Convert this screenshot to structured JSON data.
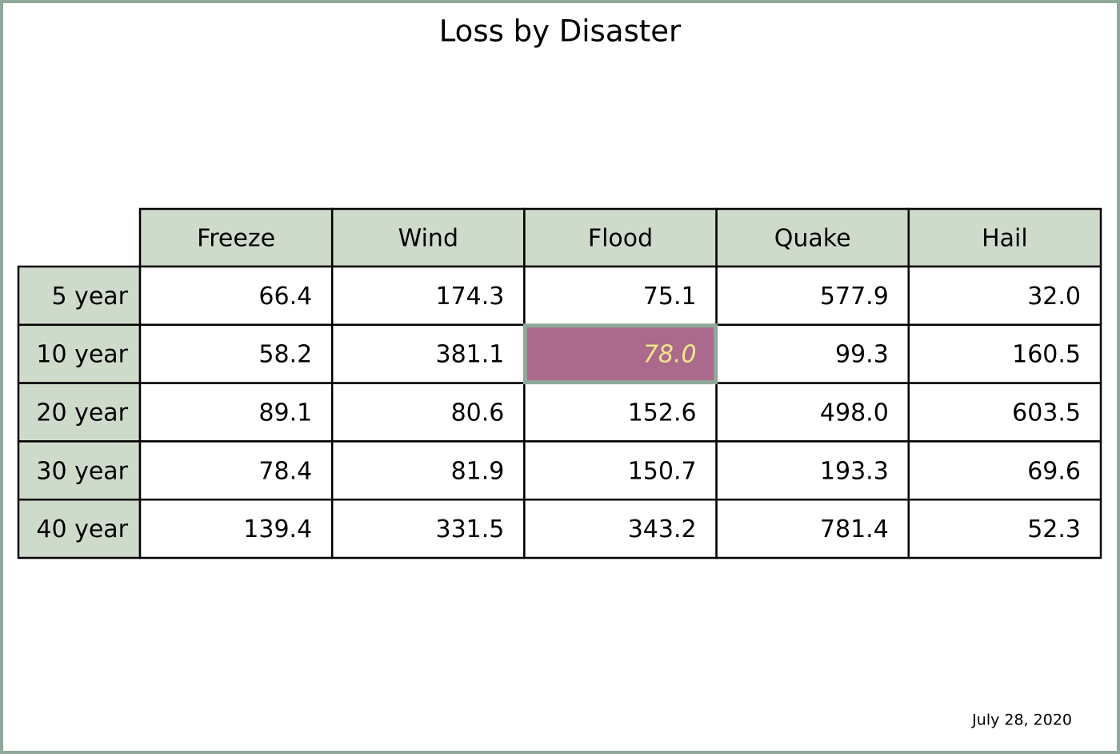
{
  "title": "Loss by Disaster",
  "table": {
    "columns": [
      "Freeze",
      "Wind",
      "Flood",
      "Quake",
      "Hail"
    ],
    "row_labels": [
      "5 year",
      "10 year",
      "20 year",
      "30 year",
      "40 year"
    ],
    "rows": [
      [
        "66.4",
        "174.3",
        "75.1",
        "577.9",
        "32.0"
      ],
      [
        "58.2",
        "381.1",
        "78.0",
        "99.3",
        "160.5"
      ],
      [
        "89.1",
        "80.6",
        "152.6",
        "498.0",
        "603.5"
      ],
      [
        "78.4",
        "81.9",
        "150.7",
        "193.3",
        "69.6"
      ],
      [
        "139.4",
        "331.5",
        "343.2",
        "781.4",
        "52.3"
      ]
    ],
    "header_color": "#cfdbca",
    "highlight": {
      "row": 1,
      "column": 2,
      "fill": "#ab6a8c",
      "text_color": "#f0e68c",
      "border_color": "#8fa89a"
    }
  },
  "footer": "July 28, 2020"
}
